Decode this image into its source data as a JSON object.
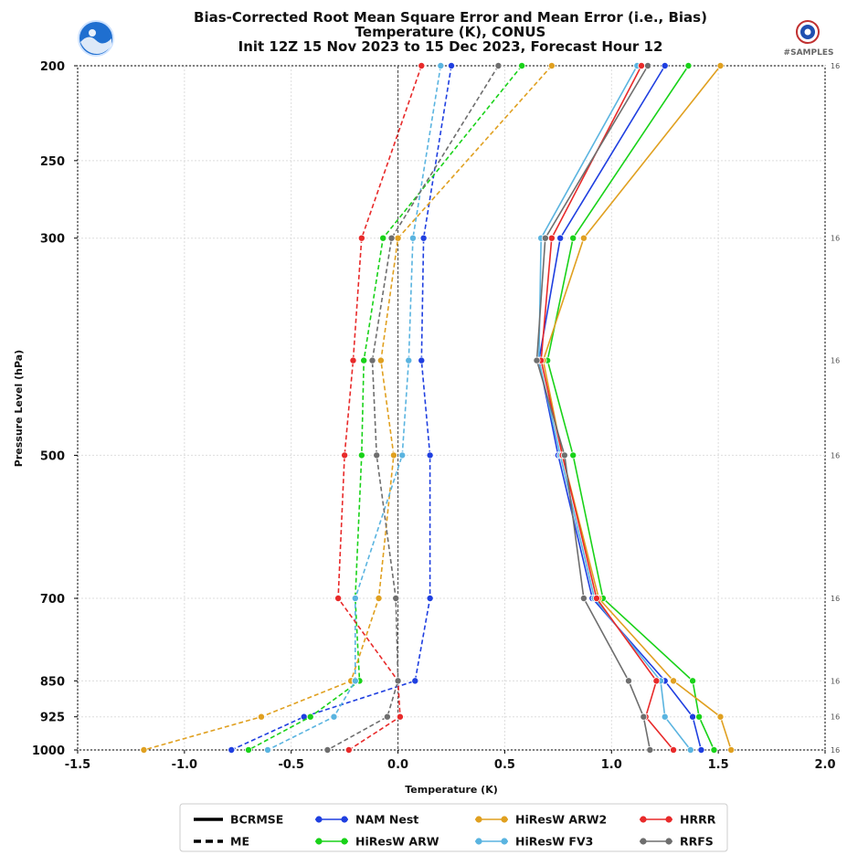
{
  "title": {
    "line1": "Bias-Corrected Root Mean Square Error and Mean Error (i.e., Bias)",
    "line2": "Temperature (K), CONUS",
    "line3": "Init 12Z 15 Nov 2023 to 15 Dec 2023, Forecast Hour 12"
  },
  "samples_label": "#SAMPLES",
  "logos": {
    "left": "noaa-logo",
    "right": "nws-logo"
  },
  "chart_data": {
    "type": "line",
    "xlabel": "Temperature (K)",
    "ylabel": "Pressure Level (hPa)",
    "xlim": [
      -1.5,
      2.0
    ],
    "ylim": [
      1000,
      200
    ],
    "y_scale": "log",
    "x_ticks": [
      -1.5,
      -1.0,
      -0.5,
      0.0,
      0.5,
      1.0,
      1.5,
      2.0
    ],
    "x_tick_labels": [
      "-1.5",
      "-1.0",
      "-0.5",
      "0.0",
      "0.5",
      "1.0",
      "1.5",
      "2.0"
    ],
    "y_ticks": [
      200,
      250,
      300,
      500,
      700,
      850,
      925,
      1000
    ],
    "y_tick_labels": [
      "200",
      "250",
      "300",
      "500",
      "700",
      "850",
      "925",
      "1000"
    ],
    "levels": [
      200,
      300,
      400,
      500,
      700,
      850,
      925,
      1000
    ],
    "sample_counts": [
      "16",
      "16",
      "16",
      "16",
      "16",
      "16",
      "16",
      "16"
    ],
    "grid": true,
    "legend_position": "bottom",
    "legend": {
      "styles": [
        {
          "label": "BCRMSE",
          "dash": "solid"
        },
        {
          "label": "ME",
          "dash": "dashed"
        }
      ]
    },
    "series": [
      {
        "name": "NAM Nest",
        "color": "#1f3fe0",
        "bcrmse": [
          1.25,
          0.76,
          0.66,
          0.75,
          0.91,
          1.25,
          1.38,
          1.42
        ],
        "me": [
          0.25,
          0.12,
          0.11,
          0.15,
          0.15,
          0.08,
          -0.44,
          -0.78
        ]
      },
      {
        "name": "HiResW ARW",
        "color": "#19d219",
        "bcrmse": [
          1.36,
          0.82,
          0.7,
          0.82,
          0.96,
          1.38,
          1.41,
          1.48
        ],
        "me": [
          0.58,
          -0.07,
          -0.16,
          -0.17,
          -0.2,
          -0.18,
          -0.41,
          -0.7
        ]
      },
      {
        "name": "HiResW ARW2",
        "color": "#e0a020",
        "bcrmse": [
          1.51,
          0.87,
          0.68,
          0.77,
          0.94,
          1.29,
          1.51,
          1.56
        ],
        "me": [
          0.72,
          0.0,
          -0.08,
          -0.02,
          -0.09,
          -0.22,
          -0.64,
          -1.19
        ]
      },
      {
        "name": "HiResW FV3",
        "color": "#5ab4e0",
        "bcrmse": [
          1.12,
          0.67,
          0.66,
          0.76,
          0.92,
          1.23,
          1.25,
          1.37
        ],
        "me": [
          0.2,
          0.07,
          0.05,
          0.02,
          -0.2,
          -0.2,
          -0.3,
          -0.61
        ]
      },
      {
        "name": "HRRR",
        "color": "#e82a2a",
        "bcrmse": [
          1.14,
          0.72,
          0.67,
          0.77,
          0.93,
          1.21,
          1.16,
          1.29
        ],
        "me": [
          0.11,
          -0.17,
          -0.21,
          -0.25,
          -0.28,
          0.0,
          0.01,
          -0.23
        ]
      },
      {
        "name": "RRFS",
        "color": "#6e6e6e",
        "bcrmse": [
          1.17,
          0.69,
          0.65,
          0.78,
          0.87,
          1.08,
          1.15,
          1.18
        ],
        "me": [
          0.47,
          -0.03,
          -0.12,
          -0.1,
          -0.01,
          0.0,
          -0.05,
          -0.33
        ]
      }
    ]
  }
}
